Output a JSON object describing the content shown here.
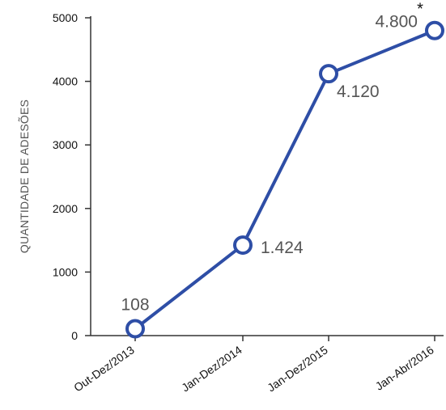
{
  "chart_data": {
    "type": "line",
    "categories": [
      "Out-Dez/2013",
      "Jan-Dez/2014",
      "Jan-Dez/2015",
      "Jan-Abr/2016"
    ],
    "series": [
      {
        "values": [
          108,
          1424,
          4120,
          4800
        ]
      }
    ],
    "data_labels": [
      "108",
      "1.424",
      "4.120",
      "4.800"
    ],
    "footnote_marker": "*",
    "ylabel": "QUANTIDADE DE ADESÕES",
    "xlabel": "",
    "ylim": [
      0,
      5000
    ],
    "yticks": [
      0,
      1000,
      2000,
      3000,
      4000,
      5000
    ],
    "grid": false,
    "legend": "none",
    "colors": {
      "line": "#2E4EA6",
      "marker_fill": "#ffffff",
      "axis": "#333333"
    }
  }
}
